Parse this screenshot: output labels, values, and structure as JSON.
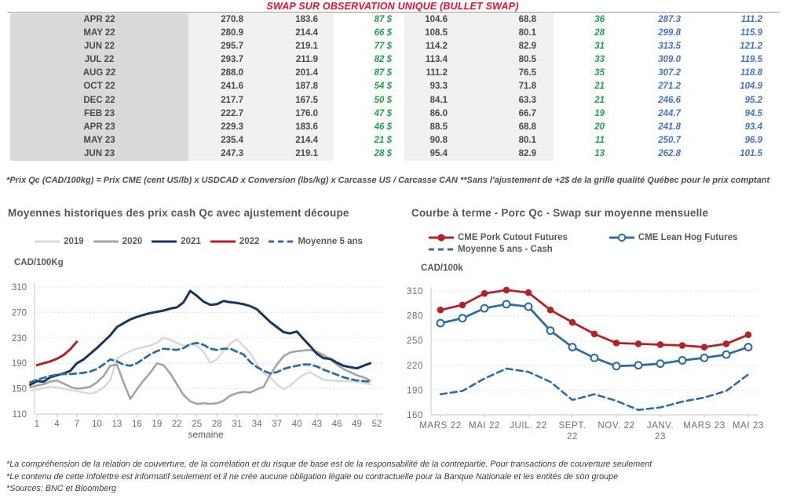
{
  "header": {
    "title": "SWAP SUR OBSERVATION UNIQUE (BULLET SWAP)"
  },
  "table": {
    "rows": [
      [
        "APR 22",
        "270.8",
        "183.6",
        "87 $",
        "104.6",
        "68.8",
        "36",
        "287.3",
        "111.2"
      ],
      [
        "MAY 22",
        "280.9",
        "214.4",
        "66 $",
        "108.5",
        "80.1",
        "28",
        "299.8",
        "115.9"
      ],
      [
        "JUN 22",
        "295.7",
        "219.1",
        "77 $",
        "114.2",
        "82.9",
        "31",
        "313.5",
        "121.2"
      ],
      [
        "JUL 22",
        "293.7",
        "211.9",
        "82 $",
        "113.4",
        "80.5",
        "33",
        "309.0",
        "119.5"
      ],
      [
        "AUG 22",
        "288.0",
        "201.4",
        "87 $",
        "111.2",
        "76.5",
        "35",
        "307.2",
        "118.8"
      ],
      [
        "OCT 22",
        "241.6",
        "187.8",
        "54 $",
        "93.3",
        "71.8",
        "21",
        "271.2",
        "104.9"
      ],
      [
        "DEC 22",
        "217.7",
        "167.5",
        "50 $",
        "84.1",
        "63.3",
        "21",
        "246.6",
        "95.2"
      ],
      [
        "FEB 23",
        "222.7",
        "176.0",
        "47 $",
        "86.0",
        "66.7",
        "19",
        "244.7",
        "94.5"
      ],
      [
        "APR 23",
        "229.3",
        "183.6",
        "46 $",
        "88.5",
        "68.8",
        "20",
        "241.8",
        "93.4"
      ],
      [
        "MAY 23",
        "235.4",
        "214.4",
        "21 $",
        "90.8",
        "80.1",
        "11",
        "250.7",
        "96.9"
      ],
      [
        "JUN 23",
        "247.3",
        "219.1",
        "28 $",
        "95.4",
        "82.9",
        "13",
        "262.8",
        "101.5"
      ]
    ]
  },
  "table_footnote": "*Prix Qc (CAD/100kg) = Prix CME (cent US/lb) x USDCAD x Conversion (lbs/kg) x Carcasse US / Carcasse CAN **Sans l'ajustement de +2$ de la grille qualité Québec pour le prix comptant",
  "colors": {
    "title_red": "#e8112d",
    "green": "#1fa148",
    "blue_italic": "#4472c4",
    "navy": "#17375d",
    "chart_red": "#b22328",
    "steel_blue": "#2e6da4",
    "gray_2019": "#d8d8d8",
    "gray_2020": "#a3a3a3"
  },
  "chart_data": [
    {
      "type": "line",
      "title": "Moyennes historiques des prix cash Qc avec ajustement découpe",
      "ylabel": "CAD/100Kg",
      "xlabel": "semaine",
      "ylim": [
        110,
        310
      ],
      "yticks": [
        110,
        150,
        190,
        230,
        270,
        310
      ],
      "x_range": [
        1,
        52
      ],
      "xticks": [
        1,
        4,
        7,
        10,
        13,
        16,
        19,
        22,
        25,
        28,
        31,
        34,
        37,
        40,
        43,
        46,
        49,
        52
      ],
      "grid": "dashed horizontal",
      "legend_position": "top",
      "series": [
        {
          "name": "2019",
          "color": "#d8d8d8",
          "width": 2.4,
          "values": [
            147,
            149,
            151,
            153,
            152,
            150,
            148,
            146,
            144,
            142,
            145,
            152,
            163,
            197,
            204,
            209,
            213,
            215,
            218,
            222,
            230,
            227,
            222,
            218,
            220,
            218,
            208,
            191,
            196,
            209,
            221,
            228,
            217,
            206,
            188,
            174,
            168,
            157,
            149,
            155,
            164,
            172,
            176,
            170,
            164,
            163,
            162,
            162,
            162,
            161,
            159,
            157
          ]
        },
        {
          "name": "2020",
          "color": "#a3a3a3",
          "width": 2.6,
          "values": [
            152,
            155,
            157,
            161,
            163,
            158,
            153,
            150,
            151,
            153,
            160,
            170,
            186,
            188,
            160,
            134,
            149,
            163,
            175,
            190,
            187,
            174,
            157,
            140,
            130,
            126,
            127,
            126,
            127,
            131,
            139,
            143,
            145,
            144,
            149,
            153,
            172,
            188,
            201,
            207,
            209,
            210,
            211,
            208,
            203,
            196,
            188,
            181,
            176,
            171,
            168,
            163
          ]
        },
        {
          "name": "2021",
          "color": "#17375d",
          "width": 3,
          "values": [
            156,
            162,
            161,
            168,
            171,
            174,
            178,
            190,
            196,
            205,
            214,
            224,
            234,
            247,
            253,
            259,
            263,
            266,
            269,
            271,
            273,
            276,
            278,
            286,
            304,
            296,
            287,
            282,
            283,
            288,
            286,
            285,
            283,
            280,
            275,
            265,
            255,
            247,
            239,
            237,
            240,
            228,
            217,
            205,
            198,
            197,
            191,
            186,
            184,
            182,
            186,
            190
          ]
        },
        {
          "name": "2022",
          "color": "#b22328",
          "width": 3,
          "x_start": 2,
          "values": [
            187,
            190,
            193,
            197,
            203,
            212,
            224
          ]
        },
        {
          "name": "Moyenne 5 ans",
          "color": "#2e6da4",
          "width": 2.8,
          "dash": true,
          "values": [
            160,
            164,
            167,
            170,
            172,
            173,
            173,
            174,
            175,
            177,
            181,
            188,
            196,
            193,
            188,
            186,
            190,
            197,
            204,
            209,
            213,
            212,
            211,
            214,
            220,
            222,
            219,
            213,
            211,
            213,
            213,
            208,
            204,
            192,
            184,
            178,
            174,
            176,
            181,
            184,
            186,
            188,
            188,
            185,
            180,
            176,
            172,
            168,
            165,
            163,
            162,
            161
          ]
        }
      ]
    },
    {
      "type": "line",
      "title": "Courbe à terme - Porc Qc - Swap sur moyenne mensuelle",
      "ylabel": "CAD/100k",
      "xlabel": "",
      "ylim": [
        160,
        310
      ],
      "yticks": [
        160,
        190,
        220,
        250,
        280,
        310
      ],
      "n_points": 15,
      "xticks": [
        {
          "i": 0,
          "l1": "MARS 22"
        },
        {
          "i": 2,
          "l1": "MAI 22"
        },
        {
          "i": 4,
          "l1": "JUIL. 22"
        },
        {
          "i": 6,
          "l1": "SEPT.",
          "l2": "22"
        },
        {
          "i": 8,
          "l1": "NOV. 22"
        },
        {
          "i": 10,
          "l1": "JANV.",
          "l2": "23"
        },
        {
          "i": 12,
          "l1": "MARS 23"
        },
        {
          "i": 14,
          "l1": "MAI 23"
        }
      ],
      "grid": "dashed horizontal",
      "legend_position": "top",
      "series": [
        {
          "name": "CME Pork Cutout Futures",
          "color": "#b22328",
          "width": 2.8,
          "marker": "filled",
          "values": [
            287,
            293,
            307,
            311,
            308,
            287,
            272,
            258,
            247,
            246,
            245,
            244,
            242,
            246,
            257
          ]
        },
        {
          "name": "CME Lean Hog Futures",
          "color": "#2e6da4",
          "width": 2.8,
          "marker": "open",
          "values": [
            271,
            277,
            289,
            294,
            291,
            262,
            242,
            229,
            219,
            220,
            222,
            226,
            229,
            233,
            242
          ]
        },
        {
          "name": "Moyenne 5 ans - Cash",
          "color": "#2e6da4",
          "width": 2.6,
          "dash": true,
          "values": [
            185,
            189,
            204,
            216,
            212,
            200,
            178,
            185,
            177,
            166,
            169,
            176,
            181,
            189,
            209
          ]
        }
      ]
    }
  ],
  "footer": {
    "lines": [
      "*La compréhension de la relation de couverture, de la corrélation et du risque de base est de la responsabilité de la contrepartie. Pour transactions de couverture seulement",
      "*Le contenu de cette infolettre est informatif seulement et il ne crée aucune obligation légale ou contractuelle pour la Banque Nationale et les entités de son groupe",
      "*Sources: BNC et Bloomberg"
    ]
  }
}
